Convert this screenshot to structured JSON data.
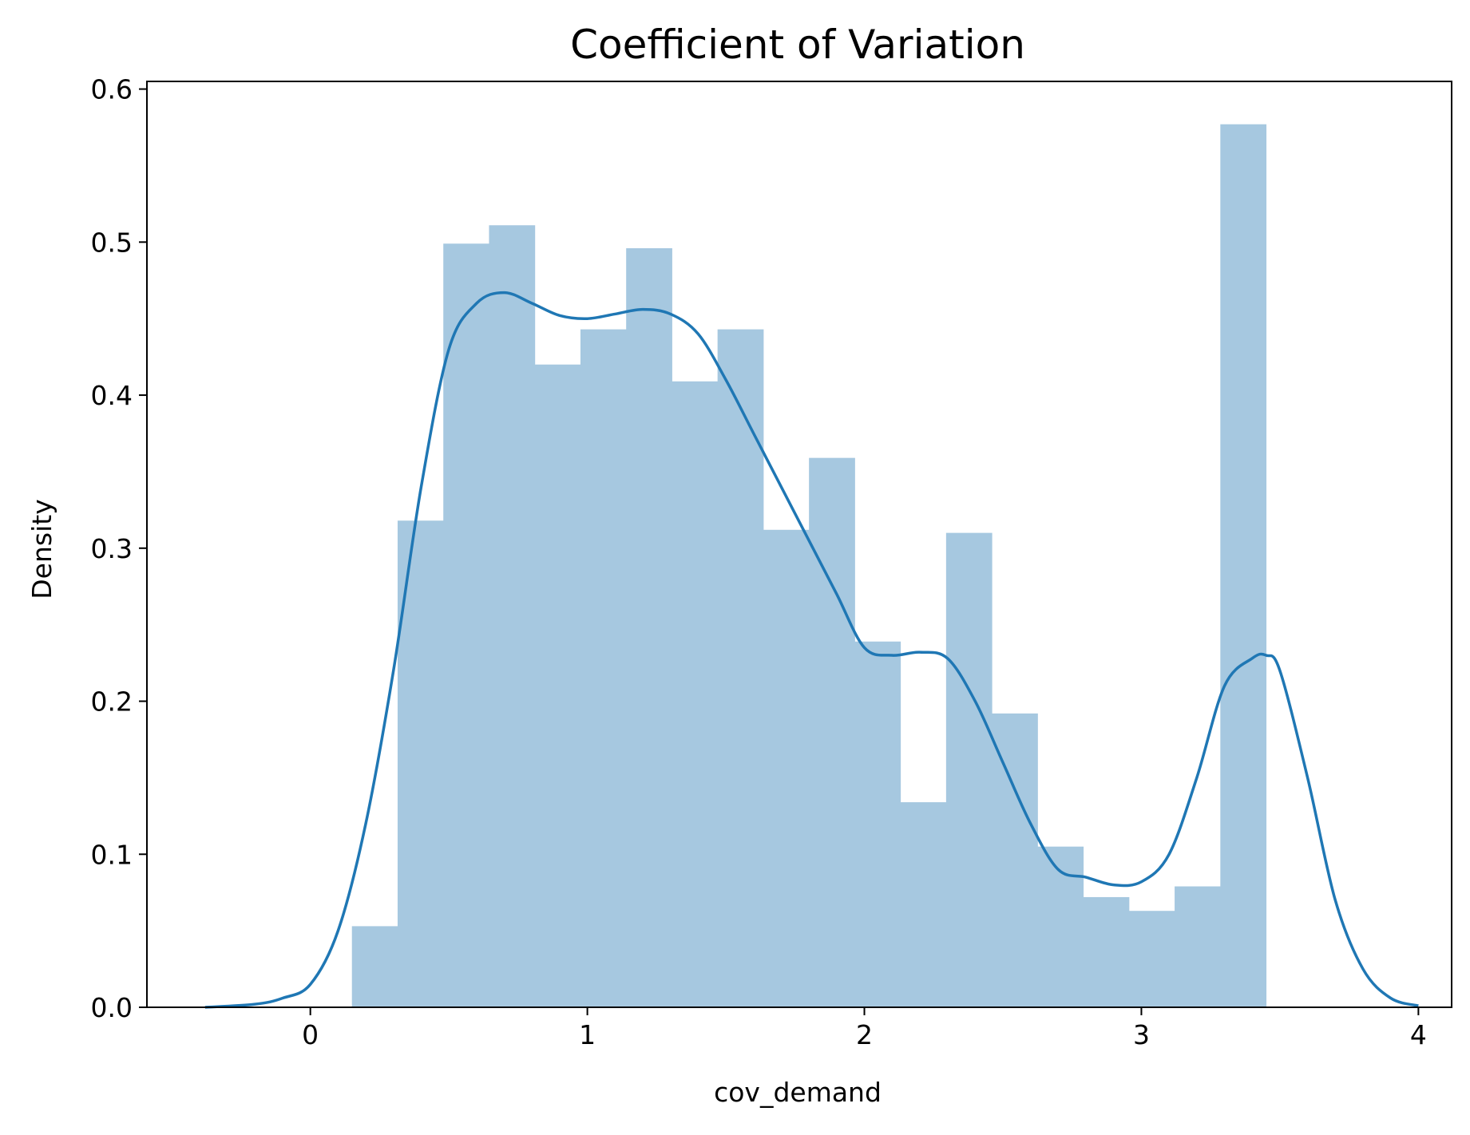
{
  "chart_data": {
    "type": "histogram",
    "title": "Coefficient of Variation",
    "xlabel": "cov_demand",
    "ylabel": "Density",
    "xlim": [
      -0.59,
      4.12
    ],
    "ylim": [
      0.0,
      0.605
    ],
    "xticks": [
      0,
      1,
      2,
      3,
      4
    ],
    "xtick_labels": [
      "0",
      "1",
      "2",
      "3",
      "4"
    ],
    "yticks": [
      0.0,
      0.1,
      0.2,
      0.3,
      0.4,
      0.5,
      0.6
    ],
    "ytick_labels": [
      "0.0",
      "0.1",
      "0.2",
      "0.3",
      "0.4",
      "0.5",
      "0.6"
    ],
    "grid": false,
    "colors": {
      "bars": "#a6c8e0",
      "kde_line": "#1f77b4",
      "axes": "#000000"
    },
    "bin_edges": [
      0.15,
      0.315,
      0.48,
      0.645,
      0.81,
      0.975,
      1.14,
      1.305,
      1.47,
      1.635,
      1.8,
      1.965,
      2.13,
      2.295,
      2.46,
      2.625,
      2.79,
      2.955,
      3.12,
      3.285,
      3.45
    ],
    "bar_values": [
      0.053,
      0.318,
      0.499,
      0.511,
      0.42,
      0.443,
      0.496,
      0.409,
      0.443,
      0.312,
      0.359,
      0.239,
      0.134,
      0.31,
      0.192,
      0.105,
      0.072,
      0.063,
      0.079,
      0.577
    ],
    "kde": {
      "x": [
        -0.38,
        -0.2,
        -0.1,
        0.0,
        0.1,
        0.2,
        0.3,
        0.4,
        0.5,
        0.6,
        0.7,
        0.8,
        0.9,
        1.0,
        1.1,
        1.2,
        1.3,
        1.4,
        1.5,
        1.6,
        1.7,
        1.8,
        1.9,
        2.0,
        2.1,
        2.2,
        2.3,
        2.4,
        2.5,
        2.6,
        2.7,
        2.8,
        2.9,
        3.0,
        3.1,
        3.2,
        3.3,
        3.4,
        3.45,
        3.5,
        3.6,
        3.7,
        3.8,
        3.9,
        4.0
      ],
      "y": [
        0.0,
        0.002,
        0.006,
        0.015,
        0.05,
        0.12,
        0.22,
        0.34,
        0.43,
        0.46,
        0.467,
        0.46,
        0.452,
        0.45,
        0.453,
        0.456,
        0.453,
        0.44,
        0.41,
        0.375,
        0.34,
        0.305,
        0.27,
        0.235,
        0.23,
        0.232,
        0.228,
        0.2,
        0.16,
        0.12,
        0.09,
        0.085,
        0.08,
        0.082,
        0.1,
        0.15,
        0.21,
        0.228,
        0.23,
        0.22,
        0.15,
        0.07,
        0.025,
        0.006,
        0.001
      ]
    }
  }
}
